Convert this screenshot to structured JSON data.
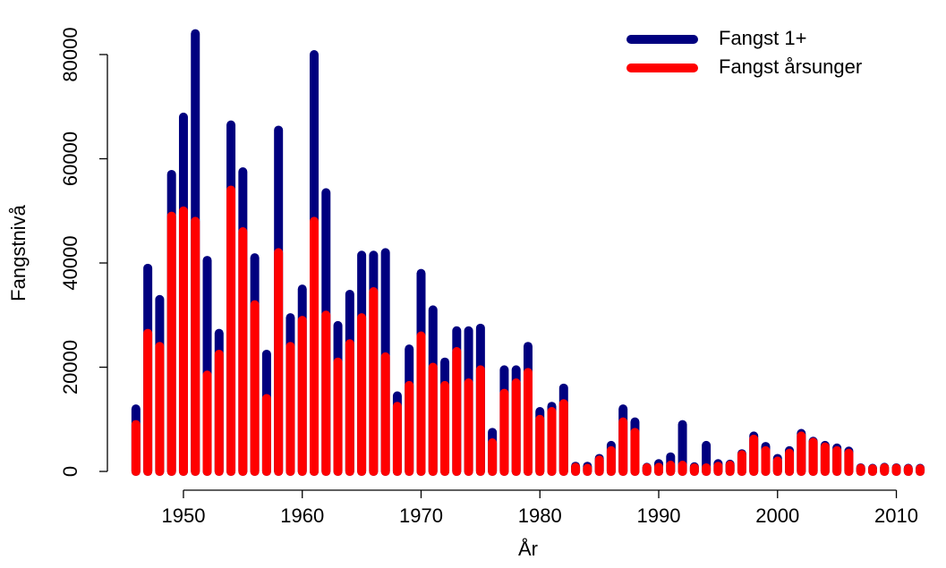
{
  "chart_data": {
    "type": "bar",
    "x_label": "År",
    "y_label": "Fangstnivå",
    "x": [
      1946,
      1947,
      1948,
      1949,
      1950,
      1951,
      1952,
      1953,
      1954,
      1955,
      1956,
      1957,
      1958,
      1959,
      1960,
      1961,
      1962,
      1963,
      1964,
      1965,
      1966,
      1967,
      1968,
      1969,
      1970,
      1971,
      1972,
      1973,
      1974,
      1975,
      1976,
      1977,
      1978,
      1979,
      1980,
      1981,
      1982,
      1983,
      1984,
      1985,
      1986,
      1987,
      1988,
      1989,
      1990,
      1991,
      1992,
      1993,
      1994,
      1995,
      1996,
      1997,
      1998,
      1999,
      2000,
      2001,
      2002,
      2003,
      2004,
      2005,
      2006,
      2007,
      2008,
      2009,
      2010,
      2011,
      2012
    ],
    "series": [
      {
        "name": "Fangst 1+",
        "color": "#00007f",
        "values": [
          12000,
          39000,
          33000,
          57000,
          68000,
          84000,
          40500,
          26500,
          66500,
          57500,
          41000,
          22500,
          65500,
          29500,
          35000,
          80000,
          53500,
          28000,
          34000,
          41500,
          41500,
          42000,
          14500,
          23500,
          38000,
          31000,
          21000,
          27000,
          27000,
          27500,
          7500,
          19500,
          19500,
          24000,
          11500,
          12500,
          16000,
          1000,
          1000,
          2500,
          5000,
          12000,
          9500,
          800,
          1500,
          2800,
          9000,
          900,
          5000,
          1500,
          1400,
          3400,
          6800,
          4800,
          2500,
          4000,
          7300,
          5800,
          5000,
          4500,
          3900,
          700,
          600,
          800,
          700,
          600,
          600
        ]
      },
      {
        "name": "Fangst årsunger",
        "color": "#ff0000",
        "values": [
          9000,
          26500,
          24000,
          49000,
          50000,
          48000,
          18500,
          22500,
          54000,
          46000,
          32000,
          14000,
          42000,
          24000,
          29000,
          48000,
          30000,
          21000,
          24500,
          29500,
          34500,
          22000,
          12500,
          16500,
          26000,
          20000,
          16500,
          23000,
          17000,
          19500,
          5500,
          15000,
          17000,
          19000,
          10000,
          11500,
          13000,
          800,
          600,
          2200,
          4000,
          9500,
          7500,
          700,
          800,
          1200,
          1200,
          700,
          700,
          1000,
          1200,
          3200,
          6200,
          4000,
          2000,
          3500,
          6800,
          5600,
          4700,
          4000,
          3500,
          600,
          500,
          700,
          600,
          500,
          500
        ]
      }
    ],
    "xlim": [
      1943.6,
      2013.5
    ],
    "ylim": [
      -3600,
      88750
    ],
    "xticks": [
      1950,
      1960,
      1970,
      1980,
      1990,
      2000,
      2010
    ],
    "yticks": [
      0,
      20000,
      40000,
      60000,
      80000
    ],
    "legend": "topright"
  }
}
